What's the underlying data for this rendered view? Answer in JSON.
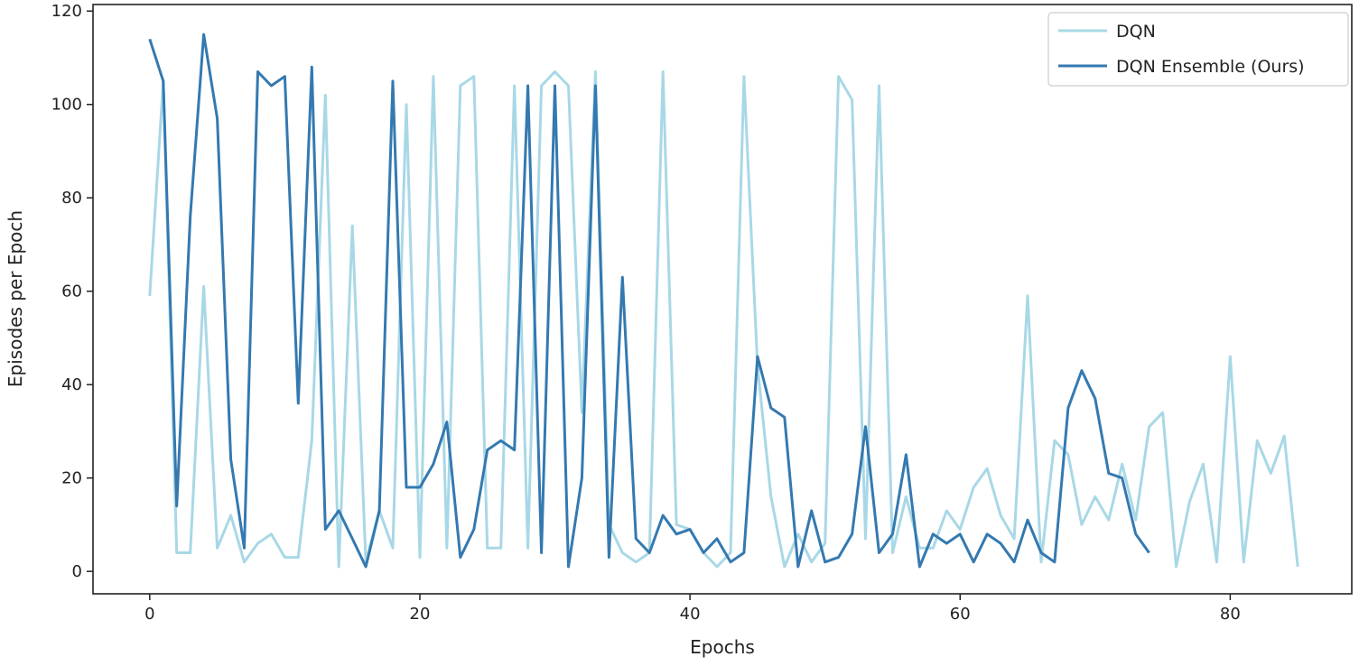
{
  "chart_data": {
    "type": "line",
    "title": "",
    "xlabel": "Epochs",
    "ylabel": "Episodes per Epoch",
    "xlim": [
      -4.2,
      89
    ],
    "ylim": [
      -4.8,
      121.4
    ],
    "xticks": [
      0,
      20,
      40,
      60,
      80
    ],
    "yticks": [
      0,
      20,
      40,
      60,
      80,
      100,
      120
    ],
    "grid": false,
    "legend_position": "top-right",
    "series": [
      {
        "name": "DQN",
        "color": "#a8d8e6",
        "values": [
          59,
          105,
          4,
          4,
          61,
          5,
          12,
          2,
          6,
          8,
          3,
          3,
          28,
          102,
          1,
          74,
          2,
          13,
          5,
          100,
          3,
          106,
          5,
          104,
          106,
          5,
          5,
          104,
          5,
          104,
          107,
          104,
          34,
          107,
          10,
          4,
          2,
          4,
          107,
          10,
          9,
          4,
          1,
          4,
          106,
          44,
          16,
          1,
          8,
          2,
          6,
          106,
          101,
          7,
          104,
          4,
          16,
          5,
          5,
          13,
          9,
          18,
          22,
          12,
          7,
          59,
          2,
          28,
          25,
          10,
          16,
          11,
          23,
          11,
          31,
          34,
          1,
          15,
          23,
          2,
          46,
          2,
          28,
          21,
          29,
          1
        ]
      },
      {
        "name": "DQN Ensemble (Ours)",
        "color": "#3479b0",
        "values": [
          114,
          105,
          14,
          76,
          115,
          97,
          24,
          5,
          107,
          104,
          106,
          36,
          108,
          9,
          13,
          7,
          1,
          13,
          105,
          18,
          18,
          23,
          32,
          3,
          9,
          26,
          28,
          26,
          104,
          4,
          104,
          1,
          20,
          104,
          3,
          63,
          7,
          4,
          12,
          8,
          9,
          4,
          7,
          2,
          4,
          46,
          35,
          33,
          1,
          13,
          2,
          3,
          8,
          31,
          4,
          8,
          25,
          1,
          8,
          6,
          8,
          2,
          8,
          6,
          2,
          11,
          4,
          2,
          35,
          43,
          37,
          21,
          20,
          8,
          4
        ]
      }
    ]
  }
}
